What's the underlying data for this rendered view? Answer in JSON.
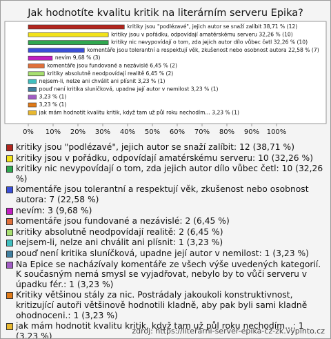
{
  "chart_data": {
    "type": "hbar",
    "title": "Jak hodnotíte kvalitu kritik na literárním serveru Epika?",
    "categories": [
      "kritiky jsou \"podlézavé\", jejich autor se snaží zalíbit: 12 (38,71 %)",
      "kritiky jsou v pořádku, odpovídají amatérskému serveru: 10 (32,26 %)",
      "kritiky nic nevypovídají o tom, zda jejich autor dílo vůbec četl: 10 (32,26 %)",
      "komentáře jsou tolerantní a respektují věk, zkušenost nebo osobnost autora: 7 (22,58 %)",
      "nevím: 3 (9,68 %)",
      "komentáře jsou fundované a nezávislé: 2 (6,45 %)",
      "kritiky absolutně neodpovídají realitě: 2 (6,45 %)",
      "nejsem-li, nelze ani chválit ani plísnit: 1 (3,23 %)",
      "pouď není kritika sluníčková, upadne její autor v nemilost: 1 (3,23 %)",
      "Na Epice se nacházívaly komentáře ze všech výše uvedených kategorií. K současným nemá smysl se vyjadřovat, nebylo by to vůči serveru v úpadku fér.: 1 (3,23 %)",
      "Kritiky většinou stály za nic. Postrádaly jakoukoli konstruktivnost, kritizující autoři většinově hodnotili kladně, aby pak byli sami kladně ohodnoceni.: 1 (3,23 %)",
      "jak mám hodnotit kvalitu kritik, když tam už půl roku nechodím...: 1 (3,23 %)"
    ],
    "values": [
      38.71,
      32.26,
      32.26,
      22.58,
      9.68,
      6.45,
      6.45,
      3.23,
      3.23,
      3.23,
      3.23,
      3.23
    ],
    "value_labels": [
      "kritiky jsou \"podlézavé\", jejich autor se snaží zalíbit 38,71 % (12)",
      "kritiky jsou v pořádku, odpovídají amatérskému serveru 32,26 % (10)",
      "kritiky nic nevypovídají o tom, zda jejich autor dílo vůbec četl 32,26 % (10)",
      "komentáře jsou tolerantní a respektují věk, zkušenost nebo osobnost autora 22,58 % (7)",
      "nevím 9,68 % (3)",
      "komentáře jsou fundované a nezávislé 6,45 % (2)",
      "kritiky absolutně neodpovídají realitě 6,45 % (2)",
      "nejsem-li, nelze ani chválit ani plísnit 3,23 % (1)",
      "pouď není kritika sluníčková, upadne její autor v nemilost 3,23 % (1)",
      "3,23 % (1)",
      "3,23 % (1)",
      "jak mám hodnotit kvalitu kritik, když tam už půl roku nechodím... 3,23 % (1)"
    ],
    "colors": [
      "#b3261e",
      "#f2e21a",
      "#2fa84f",
      "#3a4fd8",
      "#c21ec2",
      "#e0703a",
      "#a8e070",
      "#3fbfbf",
      "#3f7fa0",
      "#a25cc4",
      "#e07a18",
      "#e8b830"
    ],
    "xlim": [
      0,
      120
    ],
    "xticks": [
      {
        "value": 0,
        "label": "0%"
      },
      {
        "value": 10,
        "label": "10%"
      },
      {
        "value": 20,
        "label": "20%"
      },
      {
        "value": 30,
        "label": "30%"
      },
      {
        "value": 40,
        "label": "40%"
      },
      {
        "value": 50,
        "label": "50%"
      },
      {
        "value": 60,
        "label": "60%"
      },
      {
        "value": 70,
        "label": "70%"
      },
      {
        "value": 80,
        "label": "80%"
      },
      {
        "value": 90,
        "label": "90%"
      },
      {
        "value": 100,
        "label": "100%"
      }
    ],
    "source": "zdroj: https://literarni-server-epika-cz-zk.vyplnto.cz"
  }
}
